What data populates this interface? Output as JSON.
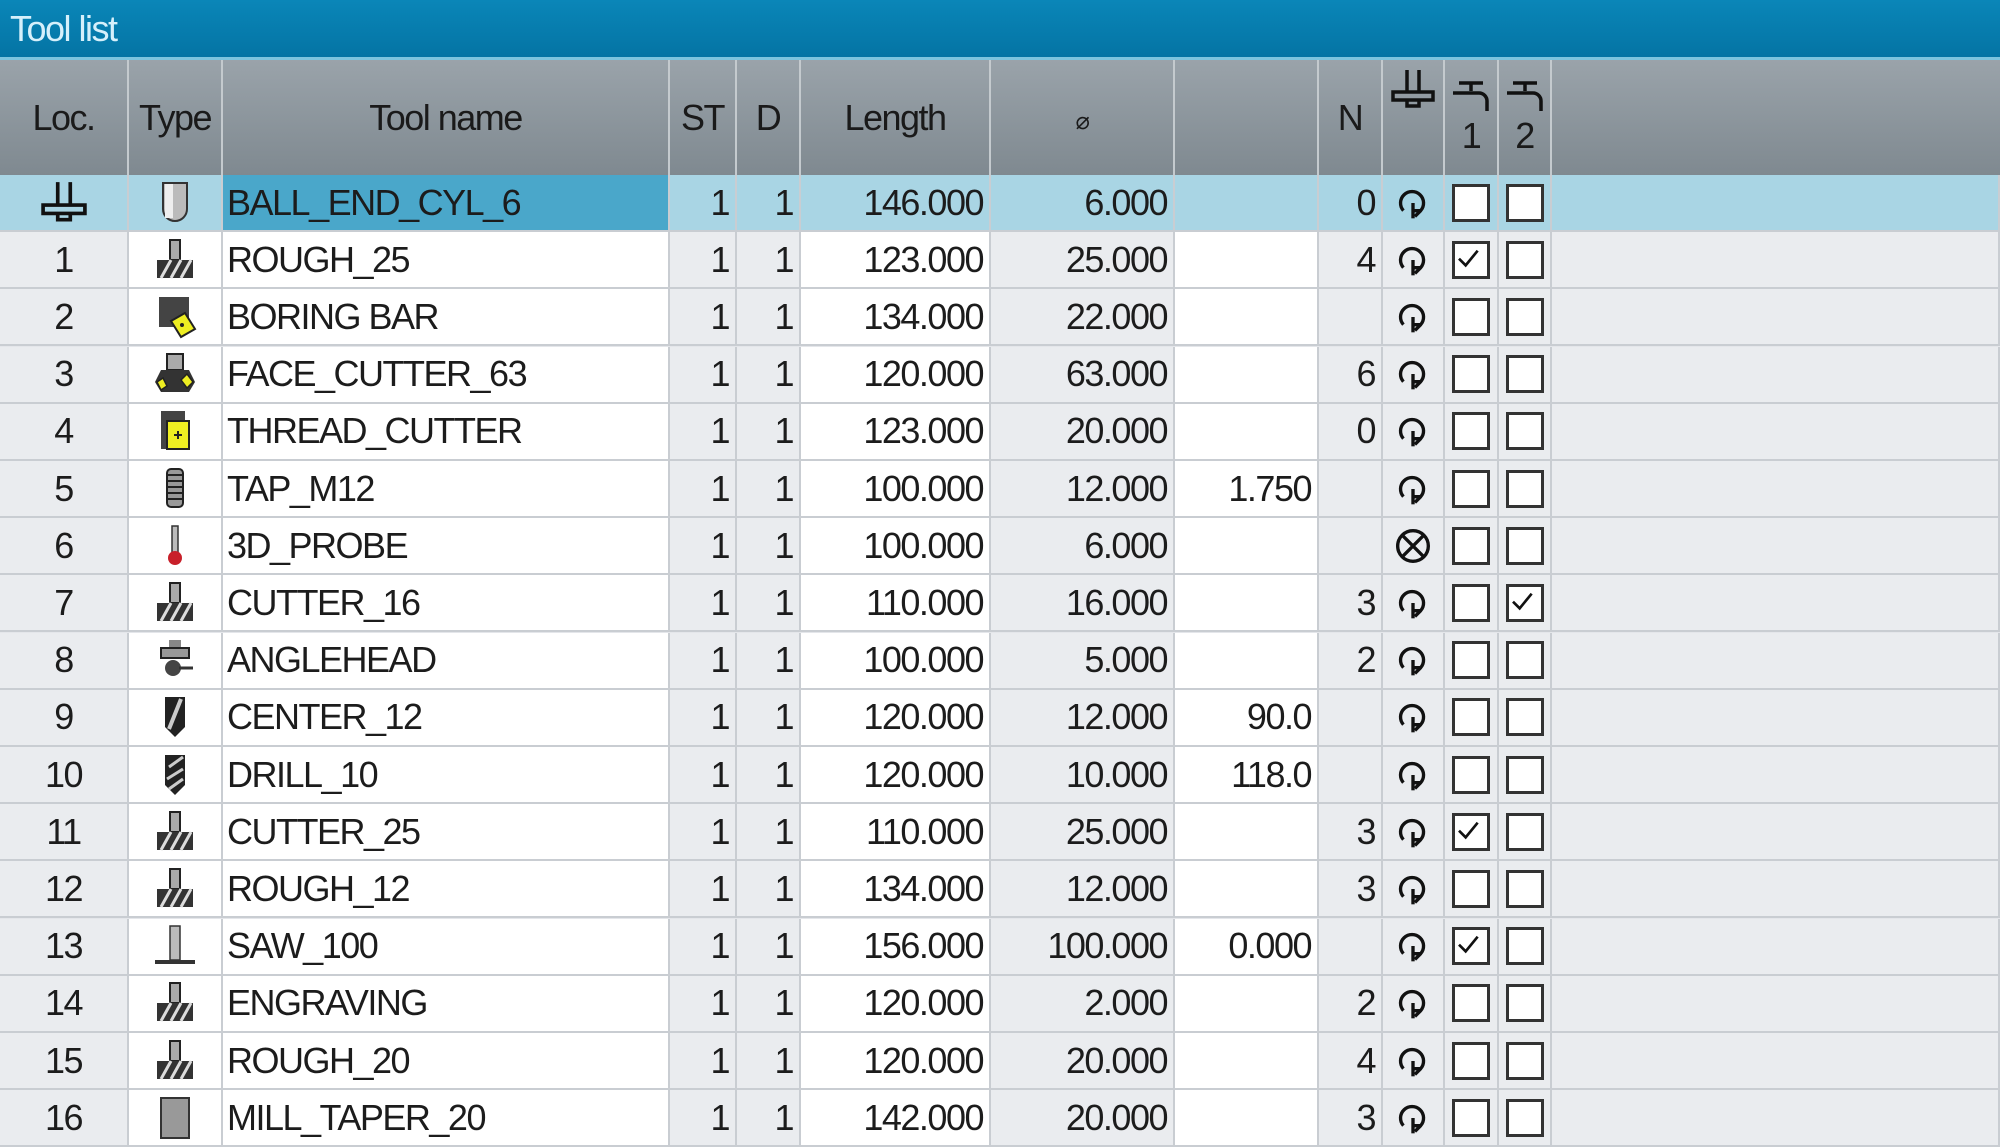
{
  "title": "Tool list",
  "columns": {
    "loc": "Loc.",
    "type": "Type",
    "name": "Tool name",
    "st": "ST",
    "d": "D",
    "length": "Length",
    "diameter": "⌀",
    "extra": "",
    "n": "N",
    "spindle": "spindle-icon",
    "mag1": "1",
    "mag2": "2"
  },
  "colors": {
    "titlebar": "#0a86b8",
    "header": "#8a949c",
    "selected_row": "#a9d5e4",
    "selected_name": "#4aa7ca"
  },
  "selected_index": 0,
  "rows": [
    {
      "loc": "",
      "loc_icon": "spindle-icon",
      "type": "ball-end-mill-icon",
      "name": "BALL_END_CYL_6",
      "st": "1",
      "d": "1",
      "length": "146.000",
      "dia": "6.000",
      "extra": "",
      "n": "0",
      "status": "spindle-direction-icon",
      "c1": false,
      "c2": false
    },
    {
      "loc": "1",
      "type": "roughing-cutter-icon",
      "name": "ROUGH_25",
      "st": "1",
      "d": "1",
      "length": "123.000",
      "dia": "25.000",
      "extra": "",
      "n": "4",
      "status": "spindle-direction-icon",
      "c1": true,
      "c2": false
    },
    {
      "loc": "2",
      "type": "boring-bar-icon",
      "name": "BORING BAR",
      "st": "1",
      "d": "1",
      "length": "134.000",
      "dia": "22.000",
      "extra": "",
      "n": "",
      "status": "spindle-direction-icon",
      "c1": false,
      "c2": false
    },
    {
      "loc": "3",
      "type": "face-cutter-icon",
      "name": "FACE_CUTTER_63",
      "st": "1",
      "d": "1",
      "length": "120.000",
      "dia": "63.000",
      "extra": "",
      "n": "6",
      "status": "spindle-direction-icon",
      "c1": false,
      "c2": false
    },
    {
      "loc": "4",
      "type": "thread-cutter-icon",
      "name": "THREAD_CUTTER",
      "st": "1",
      "d": "1",
      "length": "123.000",
      "dia": "20.000",
      "extra": "",
      "n": "0",
      "status": "spindle-direction-icon",
      "c1": false,
      "c2": false
    },
    {
      "loc": "5",
      "type": "tap-icon",
      "name": "TAP_M12",
      "st": "1",
      "d": "1",
      "length": "100.000",
      "dia": "12.000",
      "extra": "1.750",
      "n": "",
      "status": "spindle-direction-icon",
      "c1": false,
      "c2": false
    },
    {
      "loc": "6",
      "type": "probe-icon",
      "name": "3D_PROBE",
      "st": "1",
      "d": "1",
      "length": "100.000",
      "dia": "6.000",
      "extra": "",
      "n": "",
      "status": "spindle-stop-icon",
      "c1": false,
      "c2": false
    },
    {
      "loc": "7",
      "type": "end-mill-icon",
      "name": "CUTTER_16",
      "st": "1",
      "d": "1",
      "length": "110.000",
      "dia": "16.000",
      "extra": "",
      "n": "3",
      "status": "spindle-direction-icon",
      "c1": false,
      "c2": true
    },
    {
      "loc": "8",
      "type": "anglehead-icon",
      "name": "ANGLEHEAD",
      "st": "1",
      "d": "1",
      "length": "100.000",
      "dia": "5.000",
      "extra": "",
      "n": "2",
      "status": "spindle-direction-icon",
      "c1": false,
      "c2": false
    },
    {
      "loc": "9",
      "type": "center-drill-icon",
      "name": "CENTER_12",
      "st": "1",
      "d": "1",
      "length": "120.000",
      "dia": "12.000",
      "extra": "90.0",
      "n": "",
      "status": "spindle-direction-icon",
      "c1": false,
      "c2": false
    },
    {
      "loc": "10",
      "type": "drill-icon",
      "name": "DRILL_10",
      "st": "1",
      "d": "1",
      "length": "120.000",
      "dia": "10.000",
      "extra": "118.0",
      "n": "",
      "status": "spindle-direction-icon",
      "c1": false,
      "c2": false
    },
    {
      "loc": "11",
      "type": "end-mill-icon",
      "name": "CUTTER_25",
      "st": "1",
      "d": "1",
      "length": "110.000",
      "dia": "25.000",
      "extra": "",
      "n": "3",
      "status": "spindle-direction-icon",
      "c1": true,
      "c2": false
    },
    {
      "loc": "12",
      "type": "roughing-cutter-icon",
      "name": "ROUGH_12",
      "st": "1",
      "d": "1",
      "length": "134.000",
      "dia": "12.000",
      "extra": "",
      "n": "3",
      "status": "spindle-direction-icon",
      "c1": false,
      "c2": false
    },
    {
      "loc": "13",
      "type": "saw-icon",
      "name": "SAW_100",
      "st": "1",
      "d": "1",
      "length": "156.000",
      "dia": "100.000",
      "extra": "0.000",
      "n": "",
      "status": "spindle-direction-icon",
      "c1": true,
      "c2": false
    },
    {
      "loc": "14",
      "type": "end-mill-icon",
      "name": "ENGRAVING",
      "st": "1",
      "d": "1",
      "length": "120.000",
      "dia": "2.000",
      "extra": "",
      "n": "2",
      "status": "spindle-direction-icon",
      "c1": false,
      "c2": false
    },
    {
      "loc": "15",
      "type": "roughing-cutter-icon",
      "name": "ROUGH_20",
      "st": "1",
      "d": "1",
      "length": "120.000",
      "dia": "20.000",
      "extra": "",
      "n": "4",
      "status": "spindle-direction-icon",
      "c1": false,
      "c2": false
    },
    {
      "loc": "16",
      "type": "taper-mill-icon",
      "name": "MILL_TAPER_20",
      "st": "1",
      "d": "1",
      "length": "142.000",
      "dia": "20.000",
      "extra": "",
      "n": "3",
      "status": "spindle-direction-icon",
      "c1": false,
      "c2": false
    }
  ]
}
